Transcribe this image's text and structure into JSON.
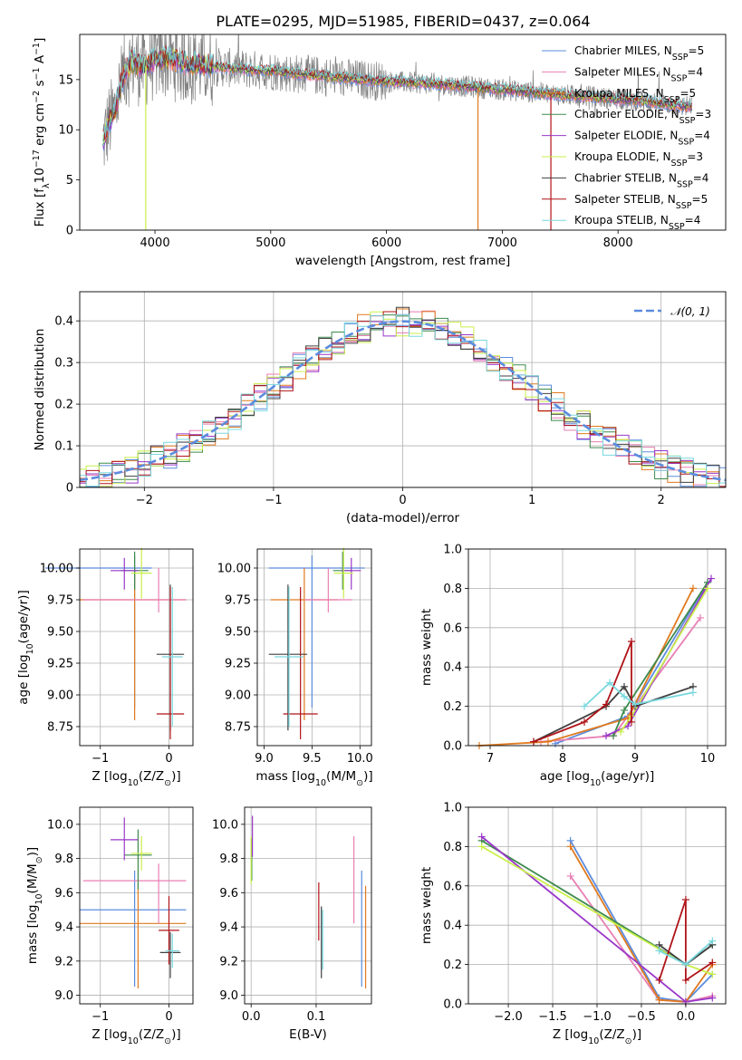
{
  "title": "PLATE=0295, MJD=51985, FIBERID=0437, z=0.064",
  "colors": {
    "Chabrier MILES": "#5b8cde",
    "Salpeter MILES": "#e87fb4",
    "Kroupa MILES": "#e07a1f",
    "Chabrier ELODIE": "#3d8a4c",
    "Salpeter ELODIE": "#9a37c9",
    "Kroupa ELODIE": "#c9ef4a",
    "Chabrier STELIB": "#404040",
    "Salpeter STELIB": "#b01318",
    "Kroupa STELIB": "#78d8de",
    "data": "#808080",
    "normal": "#5b8cde"
  },
  "chart_data": [
    {
      "id": "spectrum",
      "type": "line",
      "xlabel": "wavelength [Angstrom, rest frame]",
      "ylabel": "Flux [f$_\\lambda$10$^{-17}$ erg cm$^{-2}$ s$^{-1}$ A$^{-1}$]",
      "ylabel_parts": [
        "Flux [f",
        "λ",
        "10",
        "−17",
        " erg cm",
        "−2",
        " s",
        "−1",
        " A",
        "−1",
        "]"
      ],
      "xlim": [
        3350,
        8930
      ],
      "ylim": [
        0,
        19.5
      ],
      "xticks": [
        4000,
        5000,
        6000,
        7000,
        8000
      ],
      "yticks": [
        0,
        5,
        10,
        15
      ],
      "grid": false,
      "legend_position": "top-right",
      "legend": [
        {
          "label": "Chabrier MILES, N",
          "sub": "SSP",
          "suffix": "=5"
        },
        {
          "label": "Salpeter MILES, N",
          "sub": "SSP",
          "suffix": "=4"
        },
        {
          "label": "Kroupa MILES, N",
          "sub": "SSP",
          "suffix": "=5"
        },
        {
          "label": "Chabrier ELODIE, N",
          "sub": "SSP",
          "suffix": "=3"
        },
        {
          "label": "Salpeter ELODIE, N",
          "sub": "SSP",
          "suffix": "=4"
        },
        {
          "label": "Kroupa ELODIE, N",
          "sub": "SSP",
          "suffix": "=3"
        },
        {
          "label": "Chabrier STELIB, N",
          "sub": "SSP",
          "suffix": "=4"
        },
        {
          "label": "Salpeter STELIB, N",
          "sub": "SSP",
          "suffix": "=5"
        },
        {
          "label": "Kroupa STELIB, N",
          "sub": "SSP",
          "suffix": "=4"
        }
      ],
      "continuum": {
        "x": [
          3550,
          3600,
          3650,
          3700,
          3750,
          3800,
          3850,
          3900,
          3950,
          4000,
          4100,
          4200,
          4300,
          4400,
          4500,
          4600,
          4800,
          5000,
          5200,
          5400,
          5600,
          5800,
          6000,
          6200,
          6400,
          6600,
          6800,
          7000,
          7200,
          7400,
          7600,
          7800,
          8000,
          8200,
          8400,
          8600
        ],
        "y": [
          8.8,
          10.5,
          11.8,
          14.2,
          16.0,
          16.8,
          16.5,
          16.2,
          16.6,
          17.0,
          17.2,
          16.8,
          16.6,
          16.5,
          16.3,
          16.2,
          16.0,
          15.9,
          15.6,
          15.4,
          15.2,
          15.0,
          14.8,
          14.7,
          14.6,
          14.4,
          14.2,
          14.0,
          13.8,
          13.6,
          13.4,
          13.3,
          13.0,
          12.9,
          12.6,
          12.3
        ]
      },
      "dips": [
        {
          "x": 3920,
          "series": "Kroupa ELODIE"
        },
        {
          "x": 6790,
          "series": "Kroupa MILES"
        },
        {
          "x": 7420,
          "series": "Salpeter STELIB"
        }
      ]
    },
    {
      "id": "residuals",
      "type": "histogram",
      "xlabel": "(data-model)/error",
      "ylabel": "Normed distribution",
      "xlim": [
        -2.5,
        2.5
      ],
      "ylim": [
        0,
        0.47
      ],
      "xticks": [
        -2,
        -1,
        0,
        1,
        2
      ],
      "yticks": [
        0.0,
        0.1,
        0.2,
        0.3,
        0.4
      ],
      "grid": true,
      "legend_position": "top-right",
      "normal_label": "𝒩(0, 1)",
      "bin_width": 0.1
    },
    {
      "id": "age-vs-Z",
      "type": "errorbar",
      "xlabel": "Z [log",
      "xlabel_parts": [
        "Z [log",
        "10",
        "(Z/Z",
        "⊙",
        ")]"
      ],
      "ylabel_parts": [
        "age  [log",
        "10",
        "(age/yr)]"
      ],
      "xlim": [
        -1.3,
        0.35
      ],
      "ylim": [
        8.6,
        10.15
      ],
      "xticks": [
        -1,
        0
      ],
      "yticks": [
        8.75,
        9.0,
        9.25,
        9.5,
        9.75,
        10.0
      ],
      "ytick_labels": [
        "8.75",
        "9.00",
        "9.25",
        "9.50",
        "9.75",
        "10.00"
      ],
      "grid": true,
      "points": [
        {
          "s": "Chabrier MILES",
          "x": -0.5,
          "y": 10.0,
          "xl": 1.3,
          "xh": 0.25,
          "yl": 1.1,
          "yh": 0.1
        },
        {
          "s": "Kroupa MILES",
          "x": -0.5,
          "y": 9.75,
          "xl": 0.8,
          "xh": 0.75,
          "yl": 0.95,
          "yh": 0.25
        },
        {
          "s": "Salpeter MILES",
          "x": -0.15,
          "y": 9.75,
          "xl": 1.1,
          "xh": 0.4,
          "yl": 0.1,
          "yh": 0.25
        },
        {
          "s": "Chabrier ELODIE",
          "x": -0.5,
          "y": 9.98,
          "xl": 0.2,
          "xh": 0.2,
          "yl": 0.15,
          "yh": 0.15
        },
        {
          "s": "Salpeter ELODIE",
          "x": -0.65,
          "y": 9.98,
          "xl": 0.2,
          "xh": 0.2,
          "yl": 0.15,
          "yh": 0.1
        },
        {
          "s": "Kroupa ELODIE",
          "x": -0.4,
          "y": 9.96,
          "xl": 0.15,
          "xh": 0.15,
          "yl": 0.2,
          "yh": 0.2
        },
        {
          "s": "Chabrier STELIB",
          "x": 0.02,
          "y": 9.32,
          "xl": 0.2,
          "xh": 0.2,
          "yl": 0.6,
          "yh": 0.55
        },
        {
          "s": "Salpeter STELIB",
          "x": 0.02,
          "y": 8.85,
          "xl": 0.2,
          "xh": 0.2,
          "yl": 0.2,
          "yh": 1.0
        },
        {
          "s": "Kroupa STELIB",
          "x": 0.05,
          "y": 9.3,
          "xl": 0.15,
          "xh": 0.15,
          "yl": 0.55,
          "yh": 0.55
        }
      ]
    },
    {
      "id": "age-vs-mass",
      "type": "errorbar",
      "xlabel_parts": [
        "mass [log",
        "10",
        "(M/M",
        "⊙",
        ")]"
      ],
      "xlim": [
        8.93,
        10.12
      ],
      "ylim": [
        8.6,
        10.15
      ],
      "xticks": [
        9.0,
        9.5,
        10.0
      ],
      "xtick_labels": [
        "9.0",
        "9.5",
        "10.0"
      ],
      "yticks": [
        8.75,
        9.0,
        9.25,
        9.5,
        9.75,
        10.0
      ],
      "ytick_labels": [
        "8.75",
        "9.00",
        "9.25",
        "9.50",
        "9.75",
        "10.00"
      ],
      "grid": true,
      "points": [
        {
          "s": "Chabrier MILES",
          "x": 9.5,
          "y": 10.0,
          "xl": 0.45,
          "xh": 0.55,
          "yl": 1.1,
          "yh": 0.1
        },
        {
          "s": "Kroupa MILES",
          "x": 9.42,
          "y": 9.75,
          "xl": 0.35,
          "xh": 0.35,
          "yl": 0.95,
          "yh": 0.25
        },
        {
          "s": "Salpeter MILES",
          "x": 9.67,
          "y": 9.75,
          "xl": 0.25,
          "xh": 0.25,
          "yl": 0.1,
          "yh": 0.25
        },
        {
          "s": "Chabrier ELODIE",
          "x": 9.82,
          "y": 9.98,
          "xl": 0.1,
          "xh": 0.1,
          "yl": 0.15,
          "yh": 0.15
        },
        {
          "s": "Salpeter ELODIE",
          "x": 9.91,
          "y": 9.98,
          "xl": 0.1,
          "xh": 0.1,
          "yl": 0.15,
          "yh": 0.1
        },
        {
          "s": "Kroupa ELODIE",
          "x": 9.83,
          "y": 9.96,
          "xl": 0.1,
          "xh": 0.1,
          "yl": 0.2,
          "yh": 0.2
        },
        {
          "s": "Chabrier STELIB",
          "x": 9.25,
          "y": 9.32,
          "xl": 0.2,
          "xh": 0.2,
          "yl": 0.6,
          "yh": 0.55
        },
        {
          "s": "Salpeter STELIB",
          "x": 9.38,
          "y": 8.85,
          "xl": 0.18,
          "xh": 0.18,
          "yl": 0.2,
          "yh": 1.0
        },
        {
          "s": "Kroupa STELIB",
          "x": 9.26,
          "y": 9.3,
          "xl": 0.15,
          "xh": 0.15,
          "yl": 0.55,
          "yh": 0.55
        }
      ]
    },
    {
      "id": "weight-vs-age",
      "type": "line",
      "xlabel_parts": [
        "age  [log",
        "10",
        "(age/yr)]"
      ],
      "ylabel": "mass weight",
      "xlim": [
        6.7,
        10.25
      ],
      "ylim": [
        0,
        1.0
      ],
      "xticks": [
        7,
        8,
        9,
        10
      ],
      "yticks": [
        0.0,
        0.2,
        0.4,
        0.6,
        0.8,
        1.0
      ],
      "ytick_labels": [
        "0.0",
        "0.2",
        "0.4",
        "0.6",
        "0.8",
        "1.0"
      ],
      "grid": true,
      "series": [
        {
          "name": "Chabrier MILES",
          "x": [
            7.9,
            8.9,
            10.0
          ],
          "y": [
            0.01,
            0.15,
            0.83
          ]
        },
        {
          "name": "Salpeter MILES",
          "x": [
            7.7,
            8.7,
            9.9
          ],
          "y": [
            0.02,
            0.05,
            0.65
          ]
        },
        {
          "name": "Kroupa MILES",
          "x": [
            6.85,
            7.8,
            8.9,
            9.8
          ],
          "y": [
            0.0,
            0.02,
            0.14,
            0.8
          ]
        },
        {
          "name": "Chabrier ELODIE",
          "x": [
            8.7,
            8.85,
            10.0
          ],
          "y": [
            0.05,
            0.18,
            0.83
          ]
        },
        {
          "name": "Salpeter ELODIE",
          "x": [
            8.6,
            8.9,
            10.05
          ],
          "y": [
            0.05,
            0.1,
            0.85
          ]
        },
        {
          "name": "Kroupa ELODIE",
          "x": [
            8.8,
            8.95,
            10.0
          ],
          "y": [
            0.07,
            0.15,
            0.8
          ]
        },
        {
          "name": "Chabrier STELIB",
          "x": [
            7.6,
            8.6,
            8.85,
            9.0,
            9.8
          ],
          "y": [
            0.02,
            0.2,
            0.3,
            0.2,
            0.3
          ]
        },
        {
          "name": "Salpeter STELIB",
          "x": [
            7.6,
            8.3,
            8.6,
            8.95,
            8.95
          ],
          "y": [
            0.02,
            0.12,
            0.21,
            0.53,
            0.12
          ]
        },
        {
          "name": "Kroupa STELIB",
          "x": [
            8.3,
            8.65,
            8.85,
            9.0,
            9.8
          ],
          "y": [
            0.2,
            0.32,
            0.25,
            0.21,
            0.27
          ]
        }
      ]
    },
    {
      "id": "mass-vs-Z",
      "type": "errorbar",
      "xlabel_parts": [
        "Z [log",
        "10",
        "(Z/Z",
        "⊙",
        ")]"
      ],
      "ylabel_parts": [
        "mass [log",
        "10",
        "(M/M",
        "⊙",
        ")]"
      ],
      "xlim": [
        -1.3,
        0.35
      ],
      "ylim": [
        8.95,
        10.1
      ],
      "xticks": [
        -1,
        0
      ],
      "yticks": [
        9.0,
        9.2,
        9.4,
        9.6,
        9.8,
        10.0
      ],
      "ytick_labels": [
        "9.0",
        "9.2",
        "9.4",
        "9.6",
        "9.8",
        "10.0"
      ],
      "grid": true,
      "points": [
        {
          "s": "Chabrier MILES",
          "x": -0.5,
          "y": 9.5,
          "xl": 0.8,
          "xh": 0.75,
          "yl": 0.45,
          "yh": 0.23
        },
        {
          "s": "Kroupa MILES",
          "x": -0.45,
          "y": 9.42,
          "xl": 0.85,
          "xh": 0.7,
          "yl": 0.38,
          "yh": 0.24
        },
        {
          "s": "Salpeter MILES",
          "x": -0.15,
          "y": 9.67,
          "xl": 1.1,
          "xh": 0.4,
          "yl": 0.25,
          "yh": 0.1
        },
        {
          "s": "Chabrier ELODIE",
          "x": -0.45,
          "y": 9.82,
          "xl": 0.2,
          "xh": 0.2,
          "yl": 0.2,
          "yh": 0.15
        },
        {
          "s": "Salpeter ELODIE",
          "x": -0.65,
          "y": 9.91,
          "xl": 0.2,
          "xh": 0.2,
          "yl": 0.12,
          "yh": 0.13
        },
        {
          "s": "Kroupa ELODIE",
          "x": -0.4,
          "y": 9.83,
          "xl": 0.15,
          "xh": 0.15,
          "yl": 0.1,
          "yh": 0.1
        },
        {
          "s": "Chabrier STELIB",
          "x": 0.02,
          "y": 9.25,
          "xl": 0.15,
          "xh": 0.15,
          "yl": 0.15,
          "yh": 0.12
        },
        {
          "s": "Salpeter STELIB",
          "x": 0.0,
          "y": 9.38,
          "xl": 0.15,
          "xh": 0.15,
          "yl": 0.2,
          "yh": 0.2
        },
        {
          "s": "Kroupa STELIB",
          "x": 0.05,
          "y": 9.26,
          "xl": 0.1,
          "xh": 0.1,
          "yl": 0.1,
          "yh": 0.1
        }
      ]
    },
    {
      "id": "mass-vs-ebv",
      "type": "errorbar",
      "xlabel": "E(B-V)",
      "xlim": [
        -0.01,
        0.185
      ],
      "ylim": [
        8.95,
        10.1
      ],
      "xticks": [
        0.0,
        0.1
      ],
      "xtick_labels": [
        "0.0",
        "0.1"
      ],
      "yticks": [
        9.0,
        9.2,
        9.4,
        9.6,
        9.8,
        10.0
      ],
      "ytick_labels": [
        "9.0",
        "9.2",
        "9.4",
        "9.6",
        "9.8",
        "10.0"
      ],
      "grid": true,
      "points": [
        {
          "s": "Chabrier MILES",
          "x": 0.17,
          "y": 9.5,
          "xl": 0,
          "xh": 0,
          "yl": 0.45,
          "yh": 0.23
        },
        {
          "s": "Kroupa MILES",
          "x": 0.176,
          "y": 9.42,
          "xl": 0,
          "xh": 0,
          "yl": 0.38,
          "yh": 0.22
        },
        {
          "s": "Salpeter MILES",
          "x": 0.158,
          "y": 9.67,
          "xl": 0,
          "xh": 0,
          "yl": 0.25,
          "yh": 0.26
        },
        {
          "s": "Chabrier ELODIE",
          "x": 0.001,
          "y": 9.82,
          "xl": 0,
          "xh": 0,
          "yl": 0.15,
          "yh": 0.1
        },
        {
          "s": "Salpeter ELODIE",
          "x": 0.002,
          "y": 9.91,
          "xl": 0,
          "xh": 0,
          "yl": 0.1,
          "yh": 0.14
        },
        {
          "s": "Kroupa ELODIE",
          "x": 0.0,
          "y": 9.83,
          "xl": 0,
          "xh": 0,
          "yl": 0.18,
          "yh": 0.1
        },
        {
          "s": "Chabrier STELIB",
          "x": 0.108,
          "y": 9.3,
          "xl": 0,
          "xh": 0,
          "yl": 0.2,
          "yh": 0.22
        },
        {
          "s": "Salpeter STELIB",
          "x": 0.104,
          "y": 9.48,
          "xl": 0,
          "xh": 0,
          "yl": 0.16,
          "yh": 0.18
        },
        {
          "s": "Kroupa STELIB",
          "x": 0.11,
          "y": 9.3,
          "xl": 0,
          "xh": 0,
          "yl": 0.15,
          "yh": 0.2
        }
      ]
    },
    {
      "id": "weight-vs-Z",
      "type": "line",
      "xlabel_parts": [
        "Z [log",
        "10",
        "(Z/Z",
        "⊙",
        ")]"
      ],
      "ylabel": "mass weight",
      "xlim": [
        -2.45,
        0.45
      ],
      "ylim": [
        0,
        1.0
      ],
      "xticks": [
        -2.0,
        -1.5,
        -1.0,
        -0.5,
        0.0
      ],
      "xtick_labels": [
        "−2.0",
        "−1.5",
        "−1.0",
        "−0.5",
        "0.0"
      ],
      "yticks": [
        0.0,
        0.2,
        0.4,
        0.6,
        0.8,
        1.0
      ],
      "ytick_labels": [
        "0.0",
        "0.2",
        "0.4",
        "0.6",
        "0.8",
        "1.0"
      ],
      "grid": true,
      "series": [
        {
          "name": "Chabrier MILES",
          "x": [
            -1.3,
            -0.3,
            0.0,
            0.3
          ],
          "y": [
            0.83,
            0.03,
            0.01,
            0.15
          ]
        },
        {
          "name": "Salpeter MILES",
          "x": [
            -1.3,
            -0.3,
            0.0,
            0.3
          ],
          "y": [
            0.65,
            0.02,
            0.01,
            0.04
          ]
        },
        {
          "name": "Kroupa MILES",
          "x": [
            -1.3,
            -0.3,
            0.0,
            0.3
          ],
          "y": [
            0.8,
            0.02,
            0.01,
            0.2
          ]
        },
        {
          "name": "Chabrier ELODIE",
          "x": [
            -2.3,
            0.0,
            0.3
          ],
          "y": [
            0.83,
            0.2,
            0.3
          ]
        },
        {
          "name": "Salpeter ELODIE",
          "x": [
            -2.3,
            0.0,
            0.3
          ],
          "y": [
            0.85,
            0.01,
            0.03
          ]
        },
        {
          "name": "Kroupa ELODIE",
          "x": [
            -2.3,
            0.0,
            0.3
          ],
          "y": [
            0.8,
            0.2,
            0.15
          ]
        },
        {
          "name": "Chabrier STELIB",
          "x": [
            -0.3,
            0.0,
            0.3
          ],
          "y": [
            0.3,
            0.2,
            0.3
          ]
        },
        {
          "name": "Salpeter STELIB",
          "x": [
            -0.3,
            0.0,
            0.0,
            0.3
          ],
          "y": [
            0.12,
            0.53,
            0.12,
            0.21
          ]
        },
        {
          "name": "Kroupa STELIB",
          "x": [
            -0.3,
            0.0,
            0.3
          ],
          "y": [
            0.27,
            0.2,
            0.32
          ]
        }
      ]
    }
  ]
}
